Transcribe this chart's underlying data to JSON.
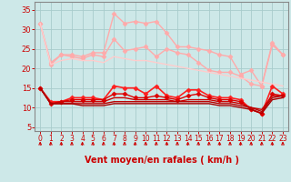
{
  "xlabel": "Vent moyen/en rafales ( km/h )",
  "xlim": [
    -0.5,
    23.5
  ],
  "ylim": [
    4,
    37
  ],
  "yticks": [
    5,
    10,
    15,
    20,
    25,
    30,
    35
  ],
  "xticks": [
    0,
    1,
    2,
    3,
    4,
    5,
    6,
    7,
    8,
    9,
    10,
    11,
    12,
    13,
    14,
    15,
    16,
    17,
    18,
    19,
    20,
    21,
    22,
    23
  ],
  "bg_color": "#cde8e8",
  "grid_color": "#a8cccc",
  "series": [
    {
      "color": "#ffaaaa",
      "linewidth": 1.0,
      "marker": "D",
      "markersize": 2.5,
      "y": [
        31.5,
        21.5,
        23.5,
        23.5,
        23.0,
        24.0,
        24.0,
        34.0,
        31.5,
        32.0,
        31.5,
        32.0,
        29.0,
        25.5,
        25.5,
        25.0,
        24.5,
        23.5,
        23.0,
        18.5,
        19.5,
        15.5,
        26.5,
        23.5
      ]
    },
    {
      "color": "#ffaaaa",
      "linewidth": 1.0,
      "marker": "D",
      "markersize": 2.5,
      "y": [
        31.5,
        21.0,
        23.5,
        23.0,
        22.5,
        23.5,
        23.0,
        27.5,
        24.5,
        25.0,
        25.5,
        23.0,
        25.0,
        24.0,
        23.5,
        21.5,
        19.5,
        19.0,
        19.0,
        18.0,
        16.0,
        15.5,
        26.0,
        23.5
      ]
    },
    {
      "color": "#ffcccc",
      "linewidth": 1.0,
      "marker": null,
      "markersize": 0,
      "y": [
        31.5,
        21.0,
        22.0,
        22.5,
        22.0,
        22.0,
        21.5,
        23.0,
        22.5,
        22.0,
        22.0,
        21.5,
        21.0,
        20.5,
        20.0,
        19.5,
        19.0,
        18.5,
        18.0,
        17.5,
        17.0,
        16.5,
        16.0,
        15.5
      ]
    },
    {
      "color": "#ff2020",
      "linewidth": 1.2,
      "marker": "D",
      "markersize": 2.5,
      "y": [
        15.0,
        11.5,
        11.5,
        12.5,
        12.5,
        12.5,
        12.0,
        15.5,
        15.0,
        15.0,
        13.5,
        15.5,
        13.0,
        12.5,
        14.5,
        14.5,
        13.0,
        12.5,
        12.5,
        12.0,
        9.5,
        8.5,
        15.5,
        13.5
      ]
    },
    {
      "color": "#dd0000",
      "linewidth": 1.0,
      "marker": "D",
      "markersize": 2.5,
      "y": [
        15.0,
        11.0,
        11.5,
        12.0,
        12.0,
        12.0,
        12.0,
        13.5,
        13.5,
        12.5,
        12.5,
        13.0,
        12.5,
        12.0,
        13.0,
        13.5,
        12.5,
        12.0,
        12.0,
        11.5,
        9.5,
        8.5,
        13.5,
        13.0
      ]
    },
    {
      "color": "#cc0000",
      "linewidth": 1.0,
      "marker": null,
      "markersize": 0,
      "y": [
        15.0,
        11.0,
        11.5,
        11.5,
        11.5,
        11.5,
        11.5,
        12.5,
        12.5,
        12.0,
        12.0,
        12.0,
        12.0,
        11.5,
        12.0,
        12.0,
        12.0,
        11.5,
        11.5,
        11.0,
        10.0,
        9.5,
        13.0,
        13.0
      ]
    },
    {
      "color": "#bb0000",
      "linewidth": 1.0,
      "marker": null,
      "markersize": 0,
      "y": [
        15.0,
        11.0,
        11.0,
        11.0,
        11.0,
        11.0,
        11.0,
        11.5,
        11.5,
        11.5,
        11.5,
        11.5,
        11.5,
        11.5,
        11.5,
        11.5,
        11.5,
        11.0,
        11.0,
        10.5,
        10.0,
        9.0,
        12.5,
        13.0
      ]
    },
    {
      "color": "#aa0000",
      "linewidth": 1.0,
      "marker": null,
      "markersize": 0,
      "y": [
        15.0,
        11.0,
        11.0,
        11.0,
        10.5,
        10.5,
        10.5,
        11.0,
        11.0,
        11.0,
        11.0,
        11.0,
        11.0,
        11.0,
        11.0,
        11.0,
        11.0,
        10.5,
        10.5,
        10.0,
        9.5,
        8.5,
        12.0,
        12.5
      ]
    }
  ],
  "arrow_color": "#cc0000",
  "axis_color": "#888888",
  "tick_color": "#cc0000",
  "label_color": "#cc0000",
  "tick_fontsize": 5.5,
  "xlabel_fontsize": 7
}
